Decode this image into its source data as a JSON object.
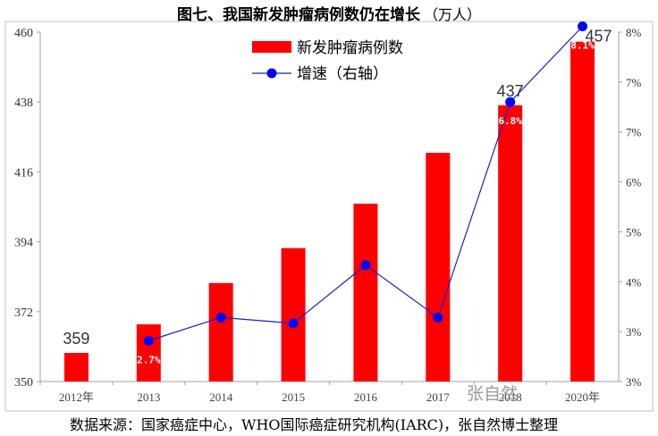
{
  "header": {
    "title": "图七、我国新发肿瘤病例数仍在增长",
    "unit": "（万人）"
  },
  "source_note": "数据来源：国家癌症中心，WHO国际癌症研究机构(IARC)，张自然博士整理",
  "watermark": "张自然",
  "colors": {
    "bars": "#ff0000",
    "line": "#1f1fc8",
    "markers": "#0000ff"
  },
  "chart_data": {
    "type": "bar",
    "title": "图七、我国新发肿瘤病例数仍在增长（万人）",
    "categories": [
      "2012年",
      "2013",
      "2014",
      "2015",
      "2016",
      "2017",
      "2018",
      "2020年"
    ],
    "series": [
      {
        "name": "新发肿瘤病例数",
        "type": "bar",
        "axis": "left",
        "values": [
          359,
          368,
          381,
          392,
          406,
          422,
          437,
          457
        ]
      },
      {
        "name": "增速（右轴）",
        "type": "line",
        "axis": "right",
        "values": [
          null,
          2.7,
          3.1,
          3.0,
          4.0,
          3.1,
          6.8,
          8.1
        ]
      }
    ],
    "data_labels": [
      {
        "series": 0,
        "index": 0,
        "text": "359"
      },
      {
        "series": 0,
        "index": 6,
        "text": "437"
      },
      {
        "series": 0,
        "index": 7,
        "text": "457"
      },
      {
        "series": 1,
        "index": 1,
        "text": "2.7%"
      },
      {
        "series": 1,
        "index": 6,
        "text": "6.8%"
      },
      {
        "series": 1,
        "index": 7,
        "text": "8.1%"
      }
    ],
    "y_left": {
      "ylim": [
        350,
        460
      ],
      "ticks": [
        "460",
        "438",
        "416",
        "394",
        "372",
        "350"
      ]
    },
    "y_right": {
      "ylim": [
        2,
        8
      ],
      "ticks": [
        "8%",
        "7%",
        "7%",
        "6%",
        "5%",
        "4%",
        "3%",
        "3%"
      ]
    },
    "grid": false,
    "legend": "top-center"
  }
}
